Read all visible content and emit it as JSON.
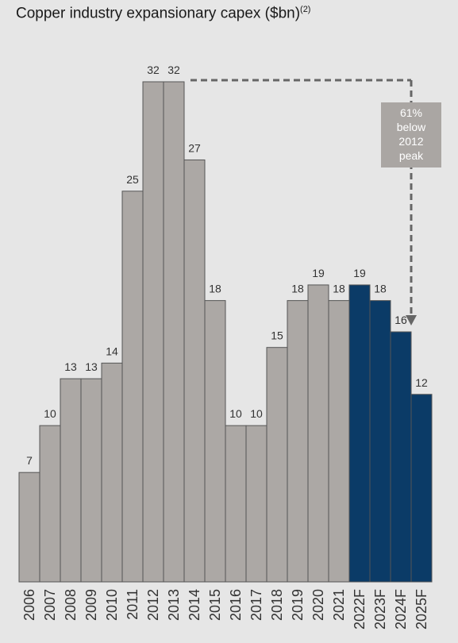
{
  "chart_data": {
    "type": "bar",
    "title": "Copper industry expansionary capex ($bn)",
    "title_superscript": "(2)",
    "categories": [
      "2006",
      "2007",
      "2008",
      "2009",
      "2010",
      "2011",
      "2012",
      "2013",
      "2014",
      "2015",
      "2016",
      "2017",
      "2018",
      "2019",
      "2020",
      "2021",
      "2022F",
      "2023F",
      "2024F",
      "2025F"
    ],
    "values": [
      7,
      10,
      13,
      13,
      14,
      25,
      32,
      32,
      27,
      18,
      10,
      10,
      15,
      18,
      19,
      18,
      19,
      18,
      16,
      12
    ],
    "value_labels": [
      "7",
      "10",
      "13",
      "13",
      "14",
      "25",
      "32",
      "32",
      "27",
      "18",
      "10",
      "10",
      "15",
      "18",
      "19",
      "18",
      "19",
      "18",
      "16",
      "12"
    ],
    "forecast": [
      false,
      false,
      false,
      false,
      false,
      false,
      false,
      false,
      false,
      false,
      false,
      false,
      false,
      false,
      false,
      false,
      true,
      true,
      true,
      true
    ],
    "actual_color": "#aca8a5",
    "forecast_color": "#0b3b67",
    "ylim": [
      0,
      32
    ],
    "grid": false,
    "annotation": {
      "lines": [
        "61%",
        "below",
        "2012",
        "peak"
      ],
      "from_category": "2013",
      "to_category": "2024F",
      "color": "#666666",
      "box_color": "#aaa6a3"
    }
  }
}
